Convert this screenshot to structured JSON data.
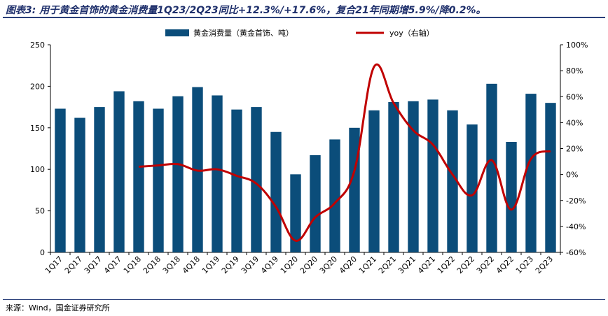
{
  "title": "图表3: 用于黄金首饰的黄金消费量1Q23/2Q23同比+12.3%/+17.6%，复合21年同期增5.9%/降0.2%。",
  "source": "来源：Wind，国金证券研究所",
  "colors": {
    "bar": "#0b4d7a",
    "line": "#c00000",
    "title": "#1e2f6b"
  },
  "chart_data": {
    "type": "bar",
    "categories": [
      "1Q17",
      "2Q17",
      "3Q17",
      "4Q17",
      "1Q18",
      "2Q18",
      "3Q18",
      "4Q18",
      "1Q19",
      "2Q19",
      "3Q19",
      "4Q19",
      "1Q20",
      "2Q20",
      "3Q20",
      "4Q20",
      "1Q21",
      "2Q21",
      "3Q21",
      "4Q21",
      "1Q22",
      "2Q22",
      "3Q22",
      "4Q22",
      "1Q23",
      "2Q23"
    ],
    "series": [
      {
        "name": "黄金消费量（黄金首饰、吨）",
        "type": "bar",
        "axis": "left",
        "values": [
          173,
          162,
          175,
          194,
          182,
          173,
          188,
          199,
          189,
          172,
          175,
          145,
          94,
          117,
          136,
          150,
          171,
          181,
          182,
          184,
          171,
          154,
          203,
          133,
          191,
          180
        ]
      },
      {
        "name": "yoy（右轴）",
        "type": "line",
        "axis": "right",
        "values": [
          null,
          null,
          null,
          null,
          6,
          7,
          8,
          3,
          4,
          -1,
          -7,
          -25,
          -51,
          -33,
          -22,
          3,
          83,
          55,
          34,
          23,
          0,
          -16,
          11,
          -27,
          12,
          18
        ]
      }
    ],
    "y_left": {
      "ylim": [
        0,
        250
      ],
      "ticks": [
        "0",
        "50",
        "100",
        "150",
        "200",
        "250"
      ]
    },
    "y_right": {
      "ylim": [
        -60,
        100
      ],
      "ticks": [
        "-60%",
        "-40%",
        "-20%",
        "0%",
        "20%",
        "40%",
        "60%",
        "80%",
        "100%"
      ]
    },
    "legend": "top-center",
    "grid": false
  }
}
